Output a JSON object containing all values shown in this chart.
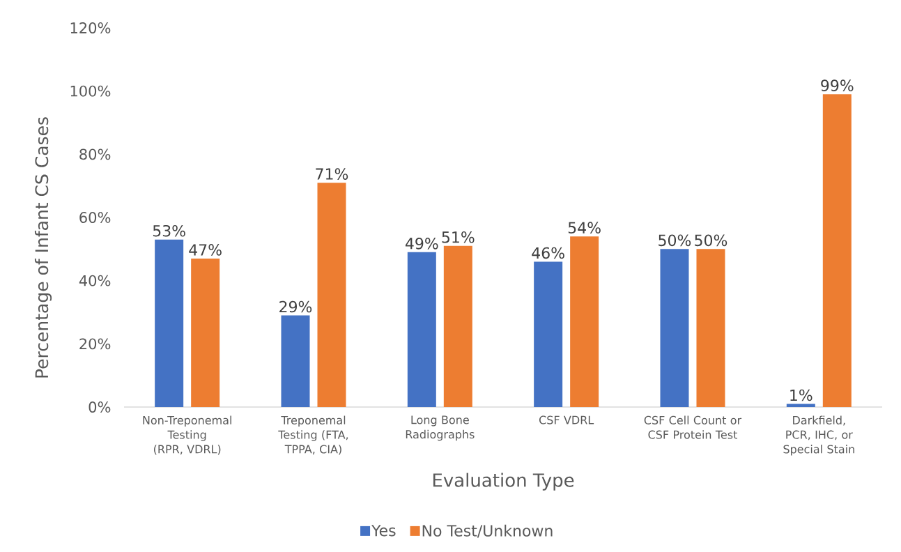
{
  "chart_data": {
    "type": "bar",
    "xlabel": "Evaluation Type",
    "ylabel": "Percentage of Infant CS Cases",
    "categories": [
      "Non-Treponemal Testing (RPR, VDRL)",
      "Treponemal Testing (FTA, TPPA, CIA)",
      "Long Bone Radiographs",
      "CSF VDRL",
      "CSF Cell Count or CSF Protein Test",
      "Darkfield, PCR, IHC, or Special Stain"
    ],
    "series": [
      {
        "name": "Yes",
        "color": "#4472c4",
        "values": [
          53,
          29,
          49,
          46,
          50,
          1
        ],
        "value_labels": [
          "53%",
          "29%",
          "49%",
          "46%",
          "50%",
          "1%"
        ]
      },
      {
        "name": "No Test/Unknown",
        "color": "#ed7d31",
        "values": [
          47,
          71,
          51,
          54,
          50,
          99
        ],
        "value_labels": [
          "47%",
          "71%",
          "51%",
          "54%",
          "50%",
          "99%"
        ]
      }
    ],
    "ylim": [
      0,
      120
    ],
    "yticks": [
      {
        "value": 0,
        "label": "0%"
      },
      {
        "value": 20,
        "label": "20%"
      },
      {
        "value": 40,
        "label": "40%"
      },
      {
        "value": 60,
        "label": "60%"
      },
      {
        "value": 80,
        "label": "80%"
      },
      {
        "value": 100,
        "label": "100%"
      },
      {
        "value": 120,
        "label": "120%"
      }
    ],
    "grid": false,
    "legend": "bottom"
  }
}
